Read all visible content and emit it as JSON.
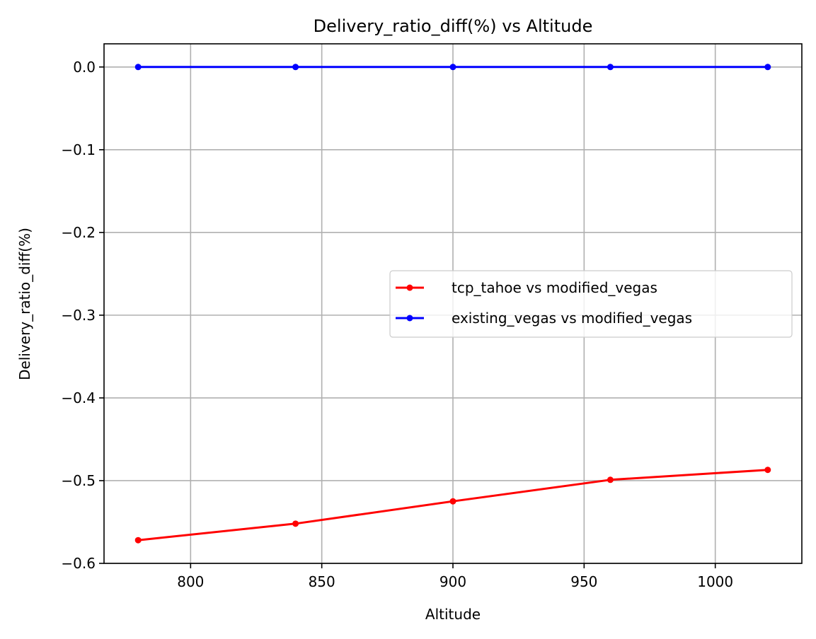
{
  "chart_data": {
    "type": "line",
    "title": "Delivery_ratio_diff(%) vs Altitude",
    "xlabel": "Altitude",
    "ylabel": "Delivery_ratio_diff(%)",
    "x": [
      780,
      840,
      900,
      960,
      1020
    ],
    "xlim": [
      767,
      1033
    ],
    "ylim": [
      -0.6,
      0.028
    ],
    "xticks": [
      800,
      850,
      900,
      950,
      1000
    ],
    "xtick_labels": [
      "800",
      "850",
      "900",
      "950",
      "1000"
    ],
    "yticks": [
      0.0,
      -0.1,
      -0.2,
      -0.3,
      -0.4,
      -0.5,
      -0.6
    ],
    "ytick_labels": [
      "0.0",
      "−0.1",
      "−0.2",
      "−0.3",
      "−0.4",
      "−0.5",
      "−0.6"
    ],
    "grid": true,
    "legend_position": "center-right",
    "series": [
      {
        "name": "tcp_tahoe vs modified_vegas",
        "color": "#ff0000",
        "marker": "dot",
        "values": [
          -0.572,
          -0.552,
          -0.525,
          -0.499,
          -0.487
        ]
      },
      {
        "name": "existing_vegas vs modified_vegas",
        "color": "#0000ff",
        "marker": "dot",
        "values": [
          0.0,
          0.0,
          0.0,
          0.0,
          0.0
        ]
      }
    ]
  }
}
